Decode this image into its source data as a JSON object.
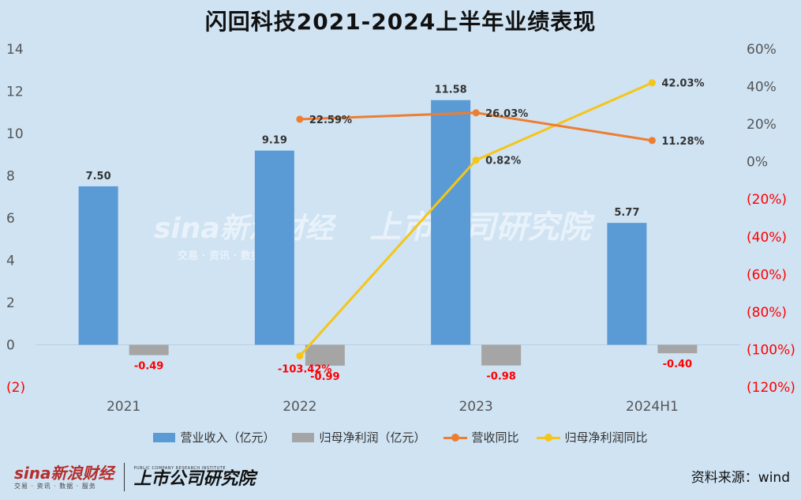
{
  "title": "闪回科技2021-2024上半年业绩表现",
  "source": "资料来源：wind",
  "watermark": {
    "sina": "sina新浪财经",
    "sina_sub": "交易 · 资讯 · 数据 · 服务",
    "ssyj": "上市公司研究院"
  },
  "footer": {
    "sina_logo": "sina新浪财经",
    "sina_sub": "交易 · 资讯 · 数据 · 服务",
    "ssyj_sub": "PUBLIC COMPANY RESEARCH INSTITUTE",
    "ssyj_logo": "上市公司研究院"
  },
  "colors": {
    "revenue": "#5b9bd5",
    "profit": "#a5a5a5",
    "revenue_growth": "#ed7d31",
    "profit_growth": "#f5c518",
    "negative_label": "#ff0000",
    "background": "#cfe3f3"
  },
  "chart_data": {
    "type": "bar",
    "categories": [
      "2021",
      "2022",
      "2023",
      "2024H1"
    ],
    "series": [
      {
        "name": "营业收入（亿元）",
        "type": "bar",
        "axis": "left",
        "values": [
          7.5,
          9.19,
          11.58,
          5.77
        ],
        "labels": [
          "7.50",
          "9.19",
          "11.58",
          "5.77"
        ]
      },
      {
        "name": "归母净利润（亿元）",
        "type": "bar",
        "axis": "left",
        "values": [
          -0.49,
          -0.99,
          -0.98,
          -0.4
        ],
        "labels": [
          "-0.49",
          "-0.99",
          "-0.98",
          "-0.40"
        ]
      },
      {
        "name": "营收同比",
        "type": "line",
        "axis": "right",
        "values": [
          null,
          22.59,
          26.03,
          11.28
        ],
        "labels": [
          "",
          "22.59%",
          "26.03%",
          "11.28%"
        ]
      },
      {
        "name": "归母净利润同比",
        "type": "line",
        "axis": "right",
        "values": [
          null,
          -103.42,
          0.82,
          42.03
        ],
        "labels": [
          "",
          "-103.42%",
          "0.82%",
          "42.03%"
        ]
      }
    ],
    "y_left": {
      "ylim": [
        -2,
        14
      ],
      "ticks": [
        14,
        12,
        10,
        8,
        6,
        4,
        2,
        0,
        -2
      ],
      "tick_labels": [
        "14",
        "12",
        "10",
        "8",
        "6",
        "4",
        "2",
        "0",
        "(2)"
      ]
    },
    "y_right": {
      "ylim": [
        -120,
        60
      ],
      "ticks": [
        60,
        40,
        20,
        0,
        -20,
        -40,
        -60,
        -80,
        -100,
        -120
      ],
      "tick_labels": [
        "60%",
        "40%",
        "20%",
        "0%",
        "(20%)",
        "(40%)",
        "(60%)",
        "(80%)",
        "(100%)",
        "(120%)"
      ]
    },
    "grid": false,
    "legend": "bottom"
  }
}
